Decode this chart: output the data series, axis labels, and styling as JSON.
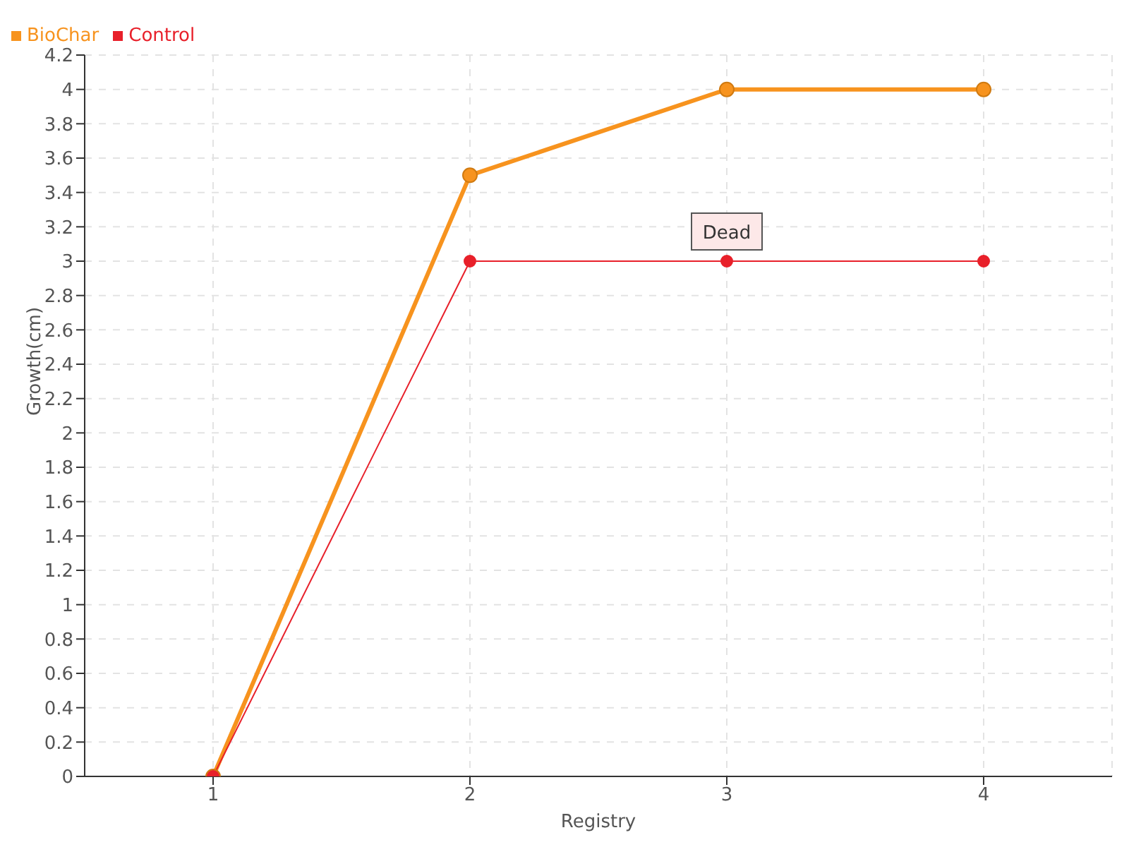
{
  "chart_data": {
    "type": "line",
    "xlabel": "Registry",
    "ylabel": "Growth(cm)",
    "x": [
      1,
      2,
      3,
      4
    ],
    "series": [
      {
        "name": "BioChar",
        "color": "#f7931e",
        "values": [
          0,
          3.5,
          4,
          4
        ]
      },
      {
        "name": "Control",
        "color": "#e8202a",
        "values": [
          0,
          3,
          3,
          3
        ]
      }
    ],
    "xlim": [
      0.5,
      4.5
    ],
    "xticks": [
      1,
      2,
      3,
      4
    ],
    "ylim": [
      0,
      4.2
    ],
    "yticks": [
      0,
      0.2,
      0.4,
      0.6,
      0.8,
      1,
      1.2,
      1.4,
      1.6,
      1.8,
      2,
      2.2,
      2.4,
      2.6,
      2.8,
      3,
      3.2,
      3.4,
      3.6,
      3.8,
      4,
      4.2
    ],
    "annotations": [
      {
        "text": "Dead",
        "x": 3,
        "y": 3
      }
    ],
    "grid": true,
    "legend": "top left",
    "marker": "circle",
    "line_style": "solid"
  }
}
